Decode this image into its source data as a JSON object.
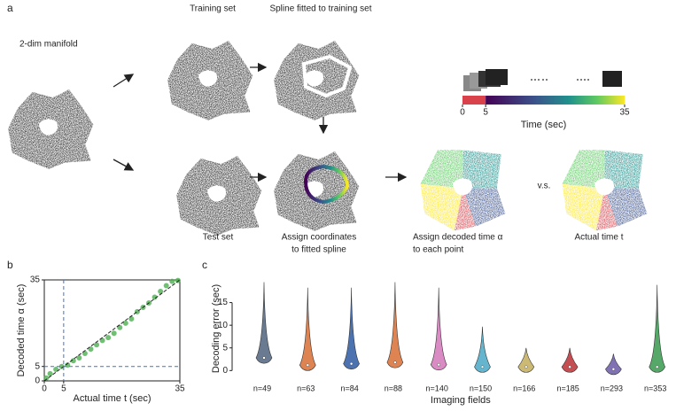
{
  "panel_labels": [
    "a",
    "b",
    "c"
  ],
  "panel_a": {
    "manifold": "2-dim manifold",
    "training": "Training set",
    "spline": "Spline fitted to training set",
    "test": "Test set",
    "assign_coords": [
      "Assign coordinates",
      "to fitted spline"
    ],
    "assign_time": [
      "Assign decoded time α",
      "to each point"
    ],
    "actual": "Actual time t",
    "vs": "v.s.",
    "colorbar": {
      "label": "Time (sec)",
      "ticks": [
        0,
        5,
        35
      ],
      "lim": [
        0,
        35
      ]
    }
  },
  "chart_data": [
    {
      "type": "scatter",
      "xlabel": "Actual time t (sec)",
      "ylabel": "Decoded time α (sec)",
      "xlim": [
        0,
        35
      ],
      "ylim": [
        0,
        35
      ],
      "xticks": [
        0,
        5,
        35
      ],
      "yticks": [
        0,
        5,
        35
      ],
      "ref_x": 5,
      "ref_y": 5,
      "diagonal": true,
      "color": "#4caf50",
      "x": [
        0.5,
        1.5,
        3,
        4.5,
        6,
        7.5,
        9,
        10.5,
        12,
        13.5,
        15,
        16.5,
        18,
        19.5,
        21,
        22.5,
        24,
        25.5,
        27,
        28.5,
        30,
        31.5,
        33,
        34.5
      ],
      "y": [
        1,
        2.5,
        4,
        5,
        5.5,
        7,
        8,
        9.5,
        11,
        12.5,
        14,
        15,
        16.5,
        18.5,
        20,
        21.5,
        24,
        25.5,
        27,
        29,
        31,
        33,
        34.5,
        34.8
      ]
    },
    {
      "type": "violin",
      "ylabel": "Decoding error (sec)",
      "xlabel": "Imaging fields",
      "categories": [
        "n=49",
        "n=63",
        "n=84",
        "n=88",
        "n=140",
        "n=150",
        "n=166",
        "n=185",
        "n=293",
        "n=353"
      ],
      "colors": [
        "#6a7a90",
        "#dd8452",
        "#4c72b0",
        "#dd8452",
        "#da8bc3",
        "#64b5cd",
        "#ccb974",
        "#c44e52",
        "#8172b3",
        "#55a868"
      ],
      "medians": [
        2.8,
        1.2,
        1.5,
        1.8,
        1.3,
        0.8,
        0.8,
        0.8,
        0.3,
        0.8
      ],
      "maxima": [
        19.5,
        18.3,
        18.3,
        19.5,
        18.3,
        9.7,
        5,
        5,
        3.7,
        18.9
      ],
      "ylim": [
        -1.5,
        20
      ],
      "yticks": [
        0,
        5,
        10,
        15
      ]
    }
  ]
}
